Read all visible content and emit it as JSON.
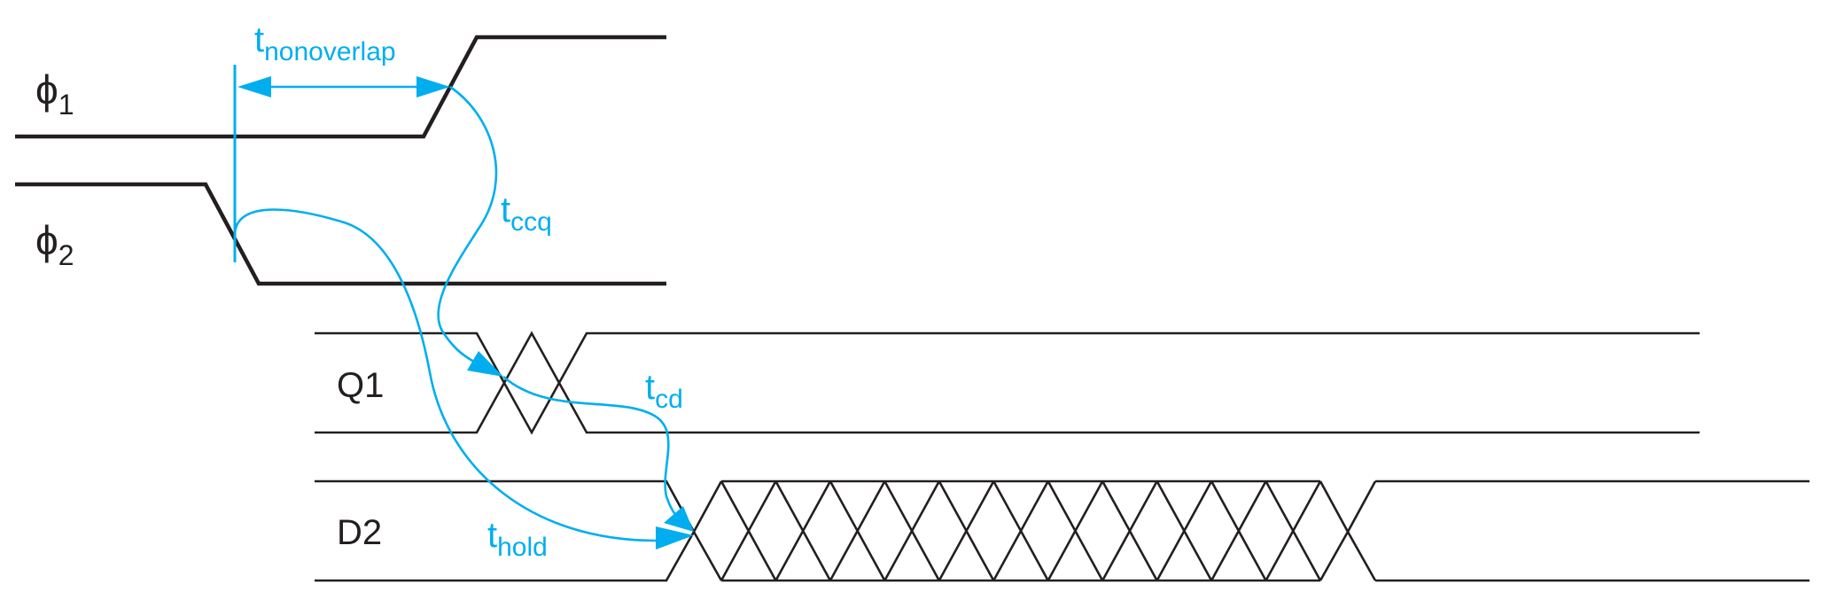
{
  "signals": {
    "phi1": {
      "symbol": "ϕ",
      "subscript": "1"
    },
    "phi2": {
      "symbol": "ϕ",
      "subscript": "2"
    },
    "q1": {
      "label": "Q1"
    },
    "d2": {
      "label": "D2"
    }
  },
  "timings": {
    "nonoverlap": {
      "base": "t",
      "subscript": "nonoverlap"
    },
    "ccq": {
      "base": "t",
      "subscript": "ccq"
    },
    "cd": {
      "base": "t",
      "subscript": "cd"
    },
    "hold": {
      "base": "t",
      "subscript": "hold"
    }
  },
  "colors": {
    "signal": "#231f20",
    "timing": "#00aeef",
    "background": "#ffffff"
  }
}
